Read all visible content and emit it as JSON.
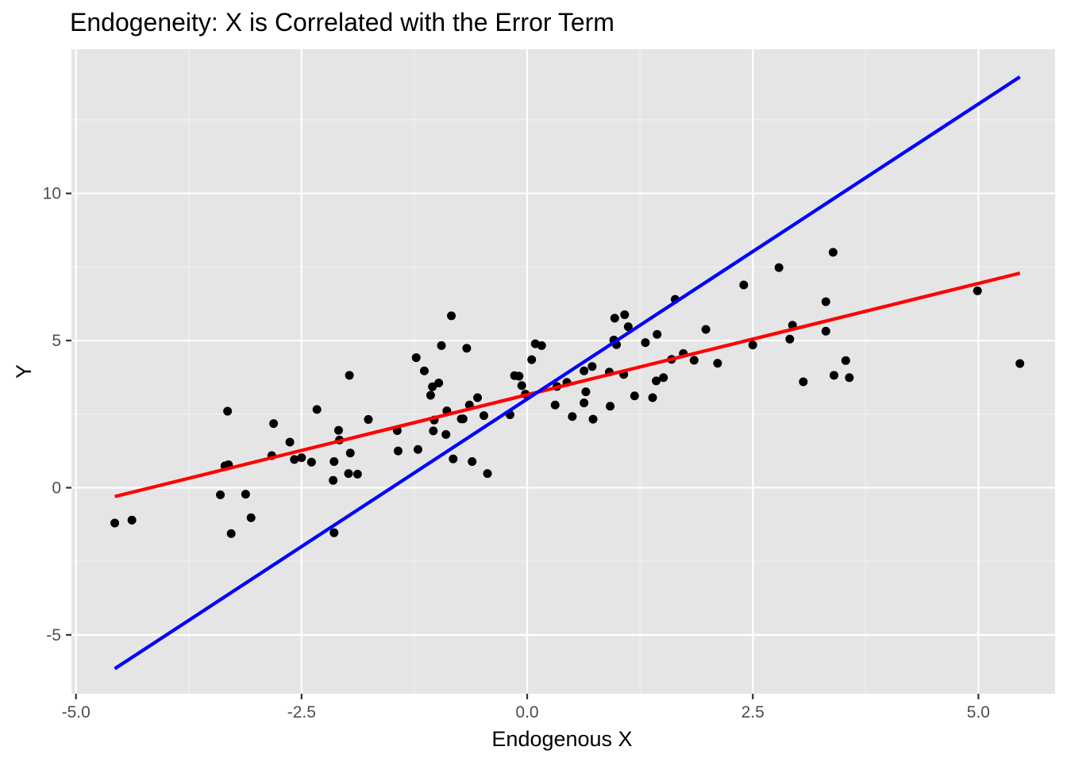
{
  "chart_data": {
    "type": "scatter",
    "title": "Endogeneity: X is Correlated with the Error Term",
    "xlabel": "Endogenous X",
    "ylabel": "Y",
    "xlim": [
      -5.05,
      5.85
    ],
    "ylim": [
      -7.0,
      14.9
    ],
    "x_ticks": [
      {
        "value": -5.0,
        "label": "-5.0"
      },
      {
        "value": -2.5,
        "label": "-2.5"
      },
      {
        "value": 0.0,
        "label": "0.0"
      },
      {
        "value": 2.5,
        "label": "2.5"
      },
      {
        "value": 5.0,
        "label": "5.0"
      }
    ],
    "y_ticks": [
      {
        "value": -5,
        "label": "-5"
      },
      {
        "value": 0,
        "label": "0"
      },
      {
        "value": 5,
        "label": "5"
      },
      {
        "value": 10,
        "label": "10"
      }
    ],
    "grid": true,
    "background": "#e5e5e5",
    "points": [
      [
        -4.57,
        -1.2
      ],
      [
        -4.38,
        -1.1
      ],
      [
        -3.4,
        -0.24
      ],
      [
        -3.35,
        0.74
      ],
      [
        -3.31,
        0.78
      ],
      [
        -3.32,
        2.6
      ],
      [
        -3.28,
        -1.56
      ],
      [
        -3.12,
        -0.22
      ],
      [
        -3.06,
        -1.02
      ],
      [
        -2.83,
        1.09
      ],
      [
        -2.81,
        2.18
      ],
      [
        -2.63,
        1.55
      ],
      [
        -2.58,
        0.96
      ],
      [
        -2.5,
        1.02
      ],
      [
        -2.39,
        0.87
      ],
      [
        -2.33,
        2.66
      ],
      [
        -2.15,
        0.25
      ],
      [
        -2.14,
        -1.53
      ],
      [
        -2.14,
        0.89
      ],
      [
        -2.09,
        1.95
      ],
      [
        -2.08,
        1.62
      ],
      [
        -1.98,
        0.48
      ],
      [
        -1.97,
        3.82
      ],
      [
        -1.96,
        1.18
      ],
      [
        -1.88,
        0.46
      ],
      [
        -1.76,
        2.32
      ],
      [
        -1.44,
        1.94
      ],
      [
        -1.43,
        1.25
      ],
      [
        -1.23,
        4.42
      ],
      [
        -1.21,
        1.3
      ],
      [
        -1.14,
        3.97
      ],
      [
        -1.07,
        3.14
      ],
      [
        -1.05,
        3.43
      ],
      [
        -1.04,
        1.93
      ],
      [
        -1.03,
        2.3
      ],
      [
        -0.98,
        3.56
      ],
      [
        -0.95,
        4.83
      ],
      [
        -0.9,
        1.81
      ],
      [
        -0.89,
        2.61
      ],
      [
        -0.84,
        5.84
      ],
      [
        -0.82,
        0.98
      ],
      [
        -0.73,
        2.34
      ],
      [
        -0.71,
        2.34
      ],
      [
        -0.67,
        4.74
      ],
      [
        -0.64,
        2.81
      ],
      [
        -0.61,
        0.89
      ],
      [
        -0.55,
        3.06
      ],
      [
        -0.48,
        2.45
      ],
      [
        -0.44,
        0.48
      ],
      [
        -0.19,
        2.48
      ],
      [
        -0.14,
        3.81
      ],
      [
        -0.09,
        3.79
      ],
      [
        -0.06,
        3.47
      ],
      [
        -0.02,
        3.18
      ],
      [
        0.05,
        4.35
      ],
      [
        0.09,
        4.89
      ],
      [
        0.16,
        4.83
      ],
      [
        0.31,
        2.81
      ],
      [
        0.33,
        3.44
      ],
      [
        0.44,
        3.58
      ],
      [
        0.5,
        2.42
      ],
      [
        0.63,
        3.97
      ],
      [
        0.63,
        2.88
      ],
      [
        0.65,
        3.26
      ],
      [
        0.72,
        4.12
      ],
      [
        0.73,
        2.33
      ],
      [
        0.91,
        3.93
      ],
      [
        0.92,
        2.77
      ],
      [
        0.96,
        5.02
      ],
      [
        0.97,
        5.76
      ],
      [
        0.99,
        4.86
      ],
      [
        1.07,
        3.85
      ],
      [
        1.08,
        5.88
      ],
      [
        1.12,
        5.47
      ],
      [
        1.19,
        3.12
      ],
      [
        1.31,
        4.93
      ],
      [
        1.39,
        3.06
      ],
      [
        1.43,
        3.63
      ],
      [
        1.44,
        5.21
      ],
      [
        1.51,
        3.74
      ],
      [
        1.6,
        4.36
      ],
      [
        1.64,
        6.4
      ],
      [
        1.73,
        4.56
      ],
      [
        1.85,
        4.33
      ],
      [
        1.98,
        5.38
      ],
      [
        2.11,
        4.23
      ],
      [
        2.4,
        6.89
      ],
      [
        2.5,
        4.85
      ],
      [
        2.79,
        7.48
      ],
      [
        2.91,
        5.05
      ],
      [
        2.94,
        5.52
      ],
      [
        3.06,
        3.6
      ],
      [
        3.31,
        6.32
      ],
      [
        3.31,
        5.32
      ],
      [
        3.39,
        8.0
      ],
      [
        3.4,
        3.82
      ],
      [
        3.53,
        4.32
      ],
      [
        3.57,
        3.74
      ],
      [
        4.99,
        6.69
      ],
      [
        5.46,
        4.22
      ]
    ],
    "lines": [
      {
        "color": "#ff0000",
        "x": [
          -4.57,
          5.46
        ],
        "y": [
          -0.3,
          7.29
        ]
      },
      {
        "color": "#0000ff",
        "x": [
          -4.57,
          5.46
        ],
        "y": [
          -6.15,
          13.96
        ]
      }
    ]
  }
}
